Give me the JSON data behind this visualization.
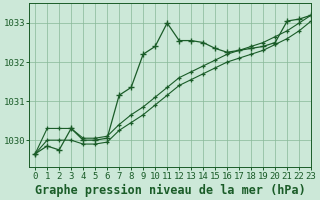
{
  "title": "Graphe pression niveau de la mer (hPa)",
  "background_color": "#cce8d8",
  "grid_color": "#88b898",
  "line_color": "#1a5c28",
  "xlim": [
    -0.5,
    23
  ],
  "ylim": [
    1029.3,
    1033.5
  ],
  "yticks": [
    1030,
    1031,
    1032,
    1033
  ],
  "xticks": [
    0,
    1,
    2,
    3,
    4,
    5,
    6,
    7,
    8,
    9,
    10,
    11,
    12,
    13,
    14,
    15,
    16,
    17,
    18,
    19,
    20,
    21,
    22,
    23
  ],
  "x": [
    0,
    1,
    2,
    3,
    4,
    5,
    6,
    7,
    8,
    9,
    10,
    11,
    12,
    13,
    14,
    15,
    16,
    17,
    18,
    19,
    20,
    21,
    22,
    23
  ],
  "line_jagged": [
    1029.65,
    1029.85,
    1029.75,
    1030.3,
    1030.0,
    1030.0,
    1030.05,
    1031.15,
    1031.35,
    1032.2,
    1032.4,
    1033.0,
    1032.55,
    1032.55,
    1032.5,
    1032.35,
    1032.25,
    1032.3,
    1032.35,
    1032.4,
    1032.5,
    1033.05,
    1033.1,
    1033.2
  ],
  "line_upper": [
    1029.65,
    1030.3,
    1030.3,
    1030.3,
    1030.05,
    1030.05,
    1030.1,
    1030.4,
    1030.65,
    1030.85,
    1031.1,
    1031.35,
    1031.6,
    1031.75,
    1031.9,
    1032.05,
    1032.2,
    1032.3,
    1032.4,
    1032.5,
    1032.65,
    1032.8,
    1033.0,
    1033.2
  ],
  "line_lower": [
    1029.65,
    1030.0,
    1030.0,
    1030.0,
    1029.9,
    1029.9,
    1029.95,
    1030.25,
    1030.45,
    1030.65,
    1030.9,
    1031.15,
    1031.4,
    1031.55,
    1031.7,
    1031.85,
    1032.0,
    1032.1,
    1032.2,
    1032.3,
    1032.45,
    1032.6,
    1032.8,
    1033.05
  ],
  "title_fontsize": 8.5,
  "tick_fontsize": 6.5
}
